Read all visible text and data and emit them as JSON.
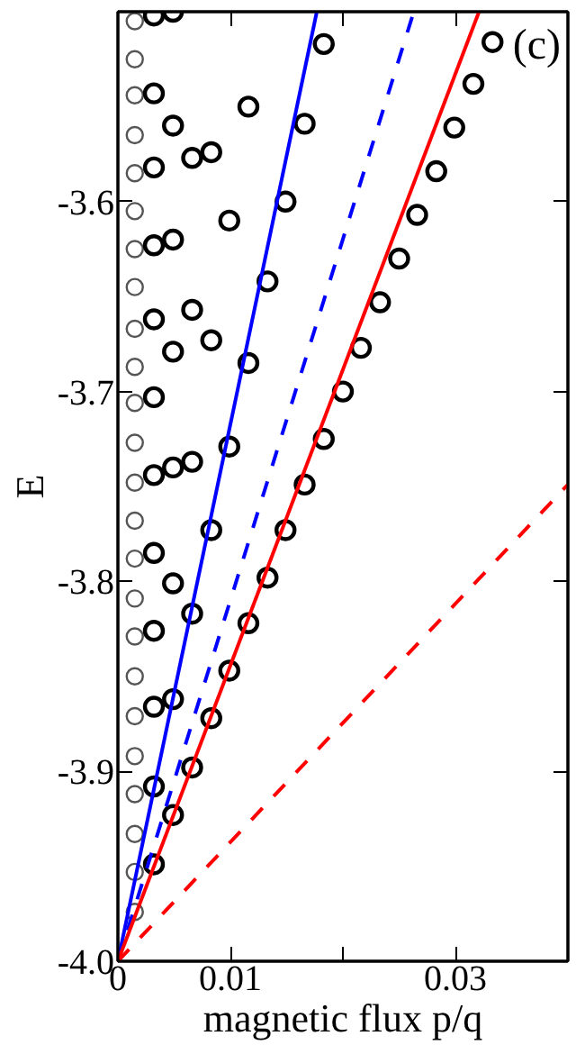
{
  "chart_data": {
    "type": "scatter",
    "xlabel": "magnetic flux p/q",
    "ylabel": "E",
    "annotations": [
      "(c)"
    ],
    "grid": false,
    "marker": "circle",
    "xlim": [
      0,
      0.04
    ],
    "ylim": [
      -4.0,
      -3.5
    ],
    "xticks": [
      {
        "value": 0,
        "label": "0"
      },
      {
        "value": 0.01,
        "label": "0.01"
      },
      {
        "value": 0.02,
        "label": null
      },
      {
        "value": 0.03,
        "label": "0.03"
      }
    ],
    "yticks": [
      {
        "value": -4.0,
        "label": "-4.0"
      },
      {
        "value": -3.9,
        "label": "-3.9"
      },
      {
        "value": -3.8,
        "label": "-3.8"
      },
      {
        "value": -3.7,
        "label": "-3.7"
      },
      {
        "value": -3.6,
        "label": "-3.6"
      },
      {
        "value": -3.5,
        "label": null
      }
    ],
    "series": [
      {
        "color": "#555555",
        "x": [
          0.0015,
          0.0015,
          0.0015,
          0.0015,
          0.0015,
          0.0015,
          0.0015,
          0.0015,
          0.0015,
          0.0015,
          0.0015,
          0.0015,
          0.0015,
          0.0015,
          0.0015,
          0.0015,
          0.0015,
          0.0015,
          0.0015,
          0.0015,
          0.0015,
          0.0015,
          0.0015,
          0.0015
        ],
        "values": [
          -3.974,
          -3.953,
          -3.933,
          -3.912,
          -3.892,
          -3.871,
          -3.85,
          -3.829,
          -3.809,
          -3.788,
          -3.768,
          -3.748,
          -3.727,
          -3.706,
          -3.687,
          -3.667,
          -3.645,
          -3.625,
          -3.605,
          -3.585,
          -3.565,
          -3.544,
          -3.525,
          -3.505
        ]
      },
      {
        "color": "#000000",
        "x": [
          0.0032,
          0.0049,
          0.0183,
          0.0032,
          0.0116,
          0.0049,
          0.0166,
          0.0066,
          0.0083,
          0.0032,
          0.0149,
          0.0099,
          0.0032,
          0.0049,
          0.0133,
          0.0066,
          0.0032,
          0.0049,
          0.0083,
          0.0116,
          0.0032,
          0.0099,
          0.0049,
          0.0066,
          0.0032,
          0.0083,
          0.0032,
          0.0049,
          0.0066,
          0.0032,
          0.0183,
          0.0166,
          0.0149,
          0.0133,
          0.0116,
          0.0099,
          0.0049,
          0.0032,
          0.0083,
          0.0066,
          0.0032,
          0.0049,
          0.0032,
          0.0333,
          0.0316,
          0.0299,
          0.0283,
          0.0266,
          0.025,
          0.0233,
          0.0216,
          0.02
        ],
        "values": [
          -3.502,
          -3.5,
          -3.517,
          -3.543,
          -3.55,
          -3.56,
          -3.559,
          -3.577,
          -3.574,
          -3.582,
          -3.6,
          -3.61,
          -3.623,
          -3.62,
          -3.642,
          -3.657,
          -3.662,
          -3.679,
          -3.673,
          -3.685,
          -3.703,
          -3.729,
          -3.74,
          -3.737,
          -3.744,
          -3.773,
          -3.785,
          -3.801,
          -3.817,
          -3.826,
          -3.725,
          -3.749,
          -3.773,
          -3.798,
          -3.822,
          -3.847,
          -3.862,
          -3.866,
          -3.872,
          -3.898,
          -3.908,
          -3.923,
          -3.949,
          -3.516,
          -3.538,
          -3.561,
          -3.584,
          -3.607,
          -3.63,
          -3.653,
          -3.677,
          -3.7
        ]
      },
      {
        "type": "line",
        "marker": "none",
        "color": "#0000ff",
        "line_style": "solid",
        "x": [
          0,
          0.01768
        ],
        "values": [
          -4.0,
          -3.5
        ]
      },
      {
        "type": "line",
        "marker": "none",
        "color": "#0000ff",
        "line_style": "dashed",
        "x": [
          0,
          0.0263
        ],
        "values": [
          -4.0,
          -3.5
        ]
      },
      {
        "type": "line",
        "marker": "none",
        "color": "#ff0000",
        "line_style": "solid",
        "x": [
          0,
          0.0321
        ],
        "values": [
          -4.0,
          -3.5
        ]
      },
      {
        "type": "line",
        "marker": "none",
        "color": "#ff0000",
        "line_style": "dashed",
        "x": [
          0,
          0.04
        ],
        "values": [
          -4.0,
          -3.749
        ]
      }
    ]
  }
}
